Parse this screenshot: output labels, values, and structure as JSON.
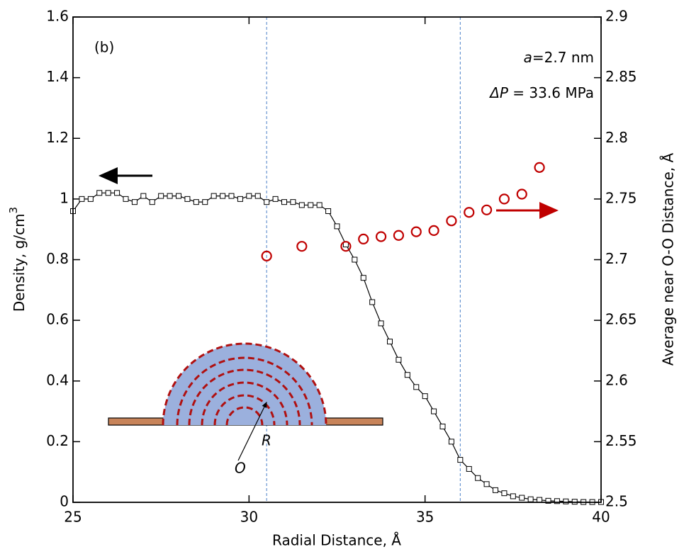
{
  "chart_data": {
    "type": "line",
    "panel_label": "(b)",
    "annotations": [
      [
        "a",
        "=2.7 nm"
      ],
      [
        "ΔP",
        " = 33.6 MPa"
      ]
    ],
    "xlabel": "Radial Distance, Å",
    "ylabel": [
      "Density, g/cm",
      "3"
    ],
    "y2label": "Average near O-O Distance, Å",
    "inset_labels": [
      "R",
      "O"
    ],
    "xlim": [
      25,
      40
    ],
    "xticks": [
      25,
      30,
      35,
      40
    ],
    "ylim": [
      0,
      1.6
    ],
    "yticks": [
      0,
      0.2,
      0.4,
      0.6,
      0.8,
      1,
      1.2,
      1.4,
      1.6
    ],
    "y2lim": [
      2.5,
      2.9
    ],
    "y2ticks": [
      2.5,
      2.55,
      2.6,
      2.65,
      2.7,
      2.75,
      2.8,
      2.85,
      2.9
    ],
    "reference_lines_x": [
      30.5,
      36
    ],
    "series": [
      {
        "color": "#000000",
        "marker": "square",
        "line": true,
        "x": [
          25,
          25.25,
          25.5,
          25.75,
          26,
          26.25,
          26.5,
          26.75,
          27,
          27.25,
          27.5,
          27.75,
          28,
          28.25,
          28.5,
          28.75,
          29,
          29.25,
          29.5,
          29.75,
          30,
          30.25,
          30.5,
          30.75,
          31,
          31.25,
          31.5,
          31.75,
          32,
          32.25,
          32.5,
          32.75,
          33,
          33.25,
          33.5,
          33.75,
          34,
          34.25,
          34.5,
          34.75,
          35,
          35.25,
          35.5,
          35.75,
          36,
          36.25,
          36.5,
          36.75,
          37,
          37.25,
          37.5,
          37.75,
          38,
          38.25,
          38.5,
          38.75,
          39,
          39.25,
          39.5,
          39.75,
          40
        ],
        "values": [
          0.96,
          1.0,
          1.0,
          1.02,
          1.02,
          1.02,
          1.0,
          0.99,
          1.01,
          0.99,
          1.01,
          1.01,
          1.01,
          1.0,
          0.99,
          0.99,
          1.01,
          1.01,
          1.01,
          1.0,
          1.01,
          1.01,
          0.99,
          1.0,
          0.99,
          0.99,
          0.98,
          0.98,
          0.98,
          0.96,
          0.91,
          0.85,
          0.8,
          0.74,
          0.66,
          0.59,
          0.53,
          0.47,
          0.42,
          0.38,
          0.35,
          0.3,
          0.25,
          0.2,
          0.14,
          0.11,
          0.08,
          0.06,
          0.04,
          0.03,
          0.02,
          0.015,
          0.01,
          0.008,
          0.005,
          0.004,
          0.003,
          0.002,
          0.001,
          0.001,
          0.001
        ]
      },
      {
        "color": "#c00000",
        "marker": "circle",
        "line": false,
        "axis": "y2",
        "x": [
          30.5,
          31.5,
          32.75,
          33.25,
          33.75,
          34.25,
          34.75,
          35.25,
          35.75,
          36.25,
          36.75,
          37.25,
          37.75,
          38.25
        ],
        "values": [
          2.703,
          2.711,
          2.711,
          2.717,
          2.719,
          2.72,
          2.723,
          2.724,
          2.732,
          2.739,
          2.741,
          2.75,
          2.754,
          2.776
        ]
      }
    ]
  }
}
